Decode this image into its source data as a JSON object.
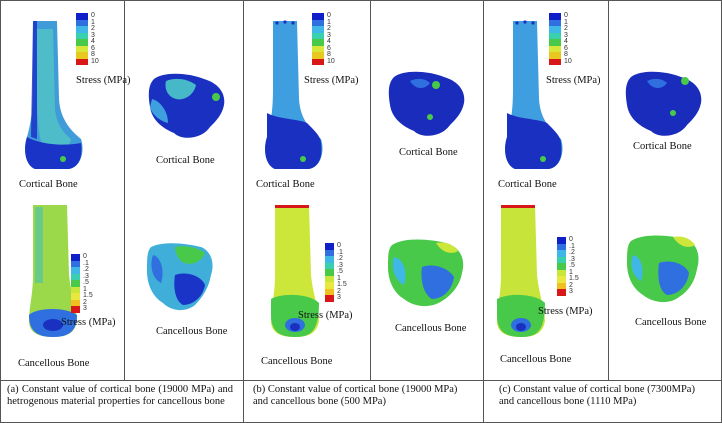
{
  "panels": [
    {
      "cortical_label": "Cortical Bone",
      "cortical_side_label": "Cortical Bone",
      "cancellous_label": "Cancellous Bone",
      "cancellous_side_label": "Cancellous Bone",
      "stress_label_top": "Stress (MPa)",
      "stress_label_bottom": "Stress (MPa)",
      "legend_top": [
        "0",
        "1",
        "2",
        "3",
        "4",
        "6",
        "8",
        "10"
      ],
      "legend_bottom": [
        "0",
        ".1",
        ".2",
        ".3",
        ".5",
        "1",
        "1.5",
        "2",
        "3"
      ],
      "caption": "(a)  Constant value of cortical bone (19000 MPa) and hetrogenous material properties for cancellous bone"
    },
    {
      "cortical_label": "Cortical Bone",
      "cortical_side_label": "Cortical Bone",
      "cancellous_label": "Cancellous Bone",
      "cancellous_side_label": "Cancellous Bone",
      "stress_label_top": "Stress (MPa)",
      "stress_label_bottom": "Stress (MPa)",
      "legend_top": [
        "0",
        "1",
        "2",
        "3",
        "4",
        "6",
        "8",
        "10"
      ],
      "legend_bottom": [
        "0",
        ".1",
        ".2",
        ".3",
        ".5",
        "1",
        "1.5",
        "2",
        "3"
      ],
      "caption": "(b)  Constant value of cortical bone (19000 MPa) and cancellous bone (500 MPa)"
    },
    {
      "cortical_label": "Cortical Bone",
      "cortical_side_label": "Cortical Bone",
      "cancellous_label": "Cancellous Bone",
      "cancellous_side_label": "Cancellous Bone",
      "stress_label_top": "Stress (MPa)",
      "stress_label_bottom": "Stress (MPa)",
      "legend_top": [
        "0",
        "1",
        "2",
        "3",
        "4",
        "6",
        "8",
        "10"
      ],
      "legend_bottom": [
        "0",
        ".1",
        ".2",
        ".3",
        ".5",
        "1",
        "1.5",
        "2",
        "3"
      ],
      "caption": "(c)  Constant value of cortical bone (7300MPa) and cancellous bone (1110 MPa)"
    }
  ],
  "colors": {
    "legend_top": [
      "#1020c8",
      "#2f6fe0",
      "#3fb8e8",
      "#39d0b0",
      "#49c94a",
      "#d8e83a",
      "#e8c820",
      "#d81818"
    ],
    "legend_bottom": [
      "#1020c8",
      "#2f6fe0",
      "#3fb8e8",
      "#39d0b0",
      "#49c94a",
      "#c9e63a",
      "#e8e840",
      "#f0c020",
      "#d81818"
    ],
    "border": "#555555"
  }
}
